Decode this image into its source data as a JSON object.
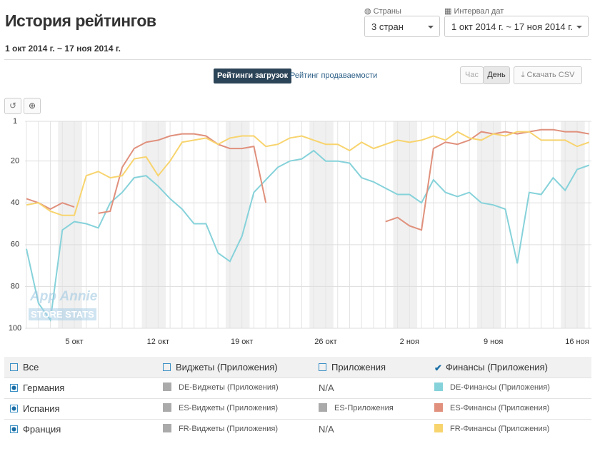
{
  "header": {
    "title": "История рейтингов",
    "date_range": "1 окт 2014 г. ~ 17 ноя 2014 г."
  },
  "filters": {
    "countries_label": "Страны",
    "countries_value": "3 стран",
    "interval_label": "Интервал дат",
    "interval_value": "1 окт 2014 г. ~ 17 ноя 2014 г."
  },
  "tabs": [
    "Рейтинги загрузок",
    "Рейтинг продаваемости"
  ],
  "buttons": [
    "Час",
    "День",
    "Скачать CSV"
  ],
  "watermark": [
    "App Annie",
    "STORE STATS"
  ],
  "chart_data": {
    "type": "line",
    "categories": [
      null,
      null,
      null,
      null,
      "5 окт",
      null,
      null,
      null,
      null,
      null,
      null,
      "12 окт",
      null,
      null,
      null,
      null,
      null,
      null,
      "19 окт",
      null,
      null,
      null,
      null,
      null,
      null,
      "26 окт",
      null,
      null,
      null,
      null,
      null,
      null,
      "2 ноя",
      null,
      null,
      null,
      null,
      null,
      null,
      "9 ноя",
      null,
      null,
      null,
      null,
      null,
      null,
      "16 ноя",
      null
    ],
    "ylim": [
      100,
      1
    ],
    "yticks": [
      1,
      20,
      40,
      60,
      80,
      100
    ],
    "grid": true,
    "series": [
      {
        "name": "DE-Финансы (Приложения)",
        "color": "#86d2da",
        "values": [
          62,
          88,
          96,
          53,
          49,
          50,
          52,
          40,
          35,
          28,
          27,
          32,
          38,
          43,
          50,
          50,
          64,
          68,
          56,
          35,
          29,
          23,
          20,
          19,
          15,
          20,
          20,
          21,
          28,
          30,
          33,
          36,
          36,
          40,
          29,
          35,
          37,
          35,
          40,
          41,
          43,
          69,
          35,
          36,
          28,
          34,
          24,
          22
        ]
      },
      {
        "name": "ES-Финансы (Приложения)",
        "color": "#e0907c",
        "values": [
          38,
          40,
          43,
          40,
          42,
          null,
          45,
          44,
          23,
          14,
          11,
          10,
          8,
          7,
          7,
          8,
          12,
          14,
          14,
          13,
          40,
          null,
          null,
          null,
          null,
          null,
          null,
          null,
          null,
          null,
          49,
          47,
          51,
          53,
          14,
          11,
          12,
          10,
          6,
          7,
          6,
          7,
          6,
          5,
          5,
          6,
          6,
          7
        ]
      },
      {
        "name": "FR-Финансы (Приложения)",
        "color": "#f8d46e",
        "values": [
          41,
          40,
          44,
          46,
          46,
          27,
          25,
          28,
          27,
          19,
          18,
          27,
          20,
          11,
          10,
          9,
          12,
          9,
          8,
          8,
          13,
          12,
          9,
          8,
          10,
          12,
          12,
          15,
          11,
          14,
          12,
          10,
          11,
          10,
          8,
          10,
          6,
          9,
          10,
          7,
          8,
          6,
          6,
          10,
          10,
          10,
          13,
          11
        ]
      }
    ]
  },
  "legend_table": {
    "header": [
      "Все",
      "Виджеты (Приложения)",
      "Приложения",
      "Финансы (Приложения)"
    ],
    "rows": [
      [
        "Германия",
        "DE-Виджеты (Приложения)",
        "N/A"
      ],
      [
        "Испания",
        "ES-Виджеты (Приложения)",
        "ES-Приложения"
      ],
      [
        "Франция",
        "FR-Виджеты (Приложения)",
        "N/A"
      ]
    ]
  }
}
